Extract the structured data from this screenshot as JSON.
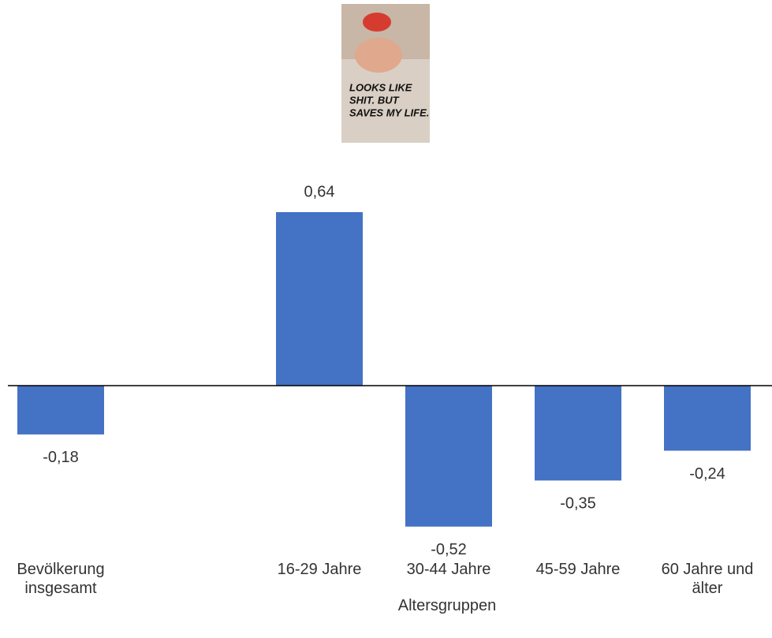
{
  "image": {
    "text": [
      "LOOKS LIKE",
      "SHIT. BUT",
      "SAVES MY LIFE."
    ]
  },
  "chart_data": {
    "type": "bar",
    "categories": [
      "Bevölkerung insgesamt",
      null,
      "16-29 Jahre",
      "30-44 Jahre",
      "45-59 Jahre",
      "60 Jahre und älter"
    ],
    "values": [
      -0.18,
      null,
      0.64,
      -0.52,
      -0.35,
      -0.24
    ],
    "value_labels": [
      "-0,18",
      null,
      "0,64",
      "-0,52",
      "-0,35",
      "-0,24"
    ],
    "x_label": "Altersgruppen",
    "color": "#4472c4",
    "ylim": [
      -0.6,
      0.7
    ]
  }
}
